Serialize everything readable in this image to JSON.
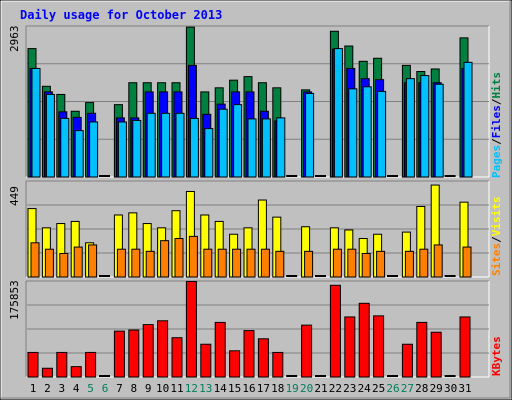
{
  "title": "Daily usage for October 2013",
  "colors": {
    "background": "#c0c0c0",
    "hits": "#008040",
    "files": "#0000ff",
    "pages": "#00c0ff",
    "visits": "#ffff00",
    "sites": "#ff8000",
    "kbytes": "#ff0000",
    "title_text": "#0000ff",
    "weekend_label": "#00805c"
  },
  "chart_data": [
    {
      "type": "bar",
      "title": "Daily usage for October 2013",
      "panel": "hits-files-pages",
      "categories": [
        "1",
        "2",
        "3",
        "4",
        "5",
        "6",
        "7",
        "8",
        "9",
        "10",
        "11",
        "12",
        "13",
        "14",
        "15",
        "16",
        "17",
        "18",
        "19",
        "20",
        "21",
        "22",
        "23",
        "24",
        "25",
        "26",
        "27",
        "28",
        "29",
        "30",
        "31"
      ],
      "ymax_label": "2963",
      "ylim": [
        0,
        2963
      ],
      "legend": [
        "Pages",
        "Files",
        "Hits"
      ],
      "series": [
        {
          "name": "Hits",
          "values": [
            2520,
            1780,
            1620,
            1290,
            1460,
            0,
            1420,
            1850,
            1850,
            1850,
            1850,
            2940,
            1670,
            1750,
            1900,
            1970,
            1850,
            1750,
            0,
            1710,
            0,
            2860,
            2570,
            2270,
            2330,
            0,
            2190,
            2070,
            2120,
            0,
            2730
          ]
        },
        {
          "name": "Files",
          "values": [
            2130,
            1670,
            1280,
            1170,
            1250,
            0,
            1160,
            1160,
            1670,
            1670,
            1670,
            2190,
            1230,
            1430,
            1670,
            1670,
            1290,
            1100,
            0,
            1670,
            0,
            2510,
            2130,
            1930,
            1910,
            0,
            1850,
            1850,
            1850,
            0,
            2130
          ]
        },
        {
          "name": "Pages",
          "values": [
            2130,
            1620,
            1150,
            910,
            1080,
            0,
            1080,
            1110,
            1250,
            1250,
            1250,
            1150,
            950,
            1330,
            1420,
            1140,
            1140,
            1160,
            0,
            1640,
            0,
            2520,
            1730,
            1770,
            1680,
            0,
            1930,
            1990,
            1820,
            0,
            2250
          ]
        }
      ]
    },
    {
      "type": "bar",
      "panel": "visits-sites",
      "categories": [
        "1",
        "2",
        "3",
        "4",
        "5",
        "6",
        "7",
        "8",
        "9",
        "10",
        "11",
        "12",
        "13",
        "14",
        "15",
        "16",
        "17",
        "18",
        "19",
        "20",
        "21",
        "22",
        "23",
        "24",
        "25",
        "26",
        "27",
        "28",
        "29",
        "30",
        "31"
      ],
      "ymax_label": "449",
      "ylim": [
        0,
        449
      ],
      "legend": [
        "Sites",
        "Visits"
      ],
      "series": [
        {
          "name": "Visits",
          "values": [
            320,
            230,
            250,
            260,
            160,
            0,
            290,
            300,
            250,
            230,
            310,
            400,
            290,
            260,
            200,
            230,
            360,
            280,
            0,
            235,
            0,
            230,
            220,
            180,
            200,
            0,
            210,
            330,
            430,
            0,
            350
          ]
        },
        {
          "name": "Sites",
          "values": [
            160,
            130,
            110,
            140,
            150,
            0,
            130,
            130,
            120,
            170,
            180,
            190,
            130,
            130,
            130,
            130,
            130,
            120,
            0,
            120,
            0,
            130,
            130,
            110,
            120,
            0,
            120,
            130,
            150,
            0,
            140
          ]
        }
      ]
    },
    {
      "type": "bar",
      "panel": "kbytes",
      "categories": [
        "1",
        "2",
        "3",
        "4",
        "5",
        "6",
        "7",
        "8",
        "9",
        "10",
        "11",
        "12",
        "13",
        "14",
        "15",
        "16",
        "17",
        "18",
        "19",
        "20",
        "21",
        "22",
        "23",
        "24",
        "25",
        "26",
        "27",
        "28",
        "29",
        "30",
        "31"
      ],
      "ymax_label": "175853",
      "ylim": [
        0,
        175853
      ],
      "legend": [
        "KBytes"
      ],
      "series": [
        {
          "name": "KBytes",
          "values": [
            45000,
            16000,
            45000,
            19000,
            45000,
            0,
            84000,
            86000,
            96000,
            103000,
            72000,
            175000,
            60000,
            100000,
            48000,
            85000,
            70000,
            45000,
            0,
            95000,
            0,
            168000,
            110000,
            135000,
            112000,
            0,
            60000,
            100000,
            82000,
            0,
            110000
          ]
        }
      ]
    }
  ],
  "day_labels": [
    {
      "text": "1",
      "weekend": false
    },
    {
      "text": "2",
      "weekend": false
    },
    {
      "text": "3",
      "weekend": false
    },
    {
      "text": "4",
      "weekend": false
    },
    {
      "text": "5",
      "weekend": true
    },
    {
      "text": "6",
      "weekend": true
    },
    {
      "text": "7",
      "weekend": false
    },
    {
      "text": "8",
      "weekend": false
    },
    {
      "text": "9",
      "weekend": false
    },
    {
      "text": "10",
      "weekend": false
    },
    {
      "text": "11",
      "weekend": false
    },
    {
      "text": "12",
      "weekend": true
    },
    {
      "text": "13",
      "weekend": true
    },
    {
      "text": "14",
      "weekend": false
    },
    {
      "text": "15",
      "weekend": false
    },
    {
      "text": "16",
      "weekend": false
    },
    {
      "text": "17",
      "weekend": false
    },
    {
      "text": "18",
      "weekend": false
    },
    {
      "text": "19",
      "weekend": true
    },
    {
      "text": "20",
      "weekend": true
    },
    {
      "text": "21",
      "weekend": false
    },
    {
      "text": "22",
      "weekend": false
    },
    {
      "text": "23",
      "weekend": false
    },
    {
      "text": "24",
      "weekend": false
    },
    {
      "text": "25",
      "weekend": false
    },
    {
      "text": "26",
      "weekend": true
    },
    {
      "text": "27",
      "weekend": true
    },
    {
      "text": "28",
      "weekend": false
    },
    {
      "text": "29",
      "weekend": false
    },
    {
      "text": "30",
      "weekend": false
    },
    {
      "text": "31",
      "weekend": false
    }
  ],
  "legend_text": {
    "pages": "Pages",
    "files": "Files",
    "hits": "Hits",
    "slash": "/",
    "sites": "Sites",
    "visits": "Visits",
    "kbytes": "KBytes"
  }
}
